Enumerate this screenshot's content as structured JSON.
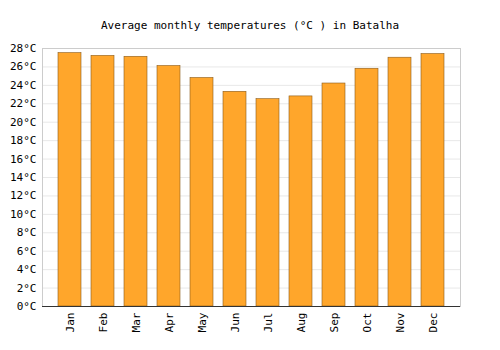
{
  "chart_data": {
    "type": "bar",
    "title": "Average monthly temperatures (°C ) in Batalha",
    "categories": [
      "Jan",
      "Feb",
      "Mar",
      "Apr",
      "May",
      "Jun",
      "Jul",
      "Aug",
      "Sep",
      "Oct",
      "Nov",
      "Dec"
    ],
    "values": [
      27.5,
      27.2,
      27.1,
      26.1,
      24.8,
      23.3,
      22.5,
      22.8,
      24.2,
      25.8,
      27.0,
      27.4
    ],
    "color": "#ffa62b",
    "ylim": [
      0,
      28
    ],
    "yticks": [
      {
        "value": 0,
        "label": "0°C"
      },
      {
        "value": 2,
        "label": "2°C"
      },
      {
        "value": 4,
        "label": "4°C"
      },
      {
        "value": 6,
        "label": "6°C"
      },
      {
        "value": 8,
        "label": "8°C"
      },
      {
        "value": 10,
        "label": "10°C"
      },
      {
        "value": 12,
        "label": "12°C"
      },
      {
        "value": 14,
        "label": "14°C"
      },
      {
        "value": 16,
        "label": "16°C"
      },
      {
        "value": 18,
        "label": "18°C"
      },
      {
        "value": 20,
        "label": "20°C"
      },
      {
        "value": 22,
        "label": "22°C"
      },
      {
        "value": 24,
        "label": "24°C"
      },
      {
        "value": 26,
        "label": "26°C"
      },
      {
        "value": 28,
        "label": "28°C"
      }
    ],
    "grid": true
  }
}
